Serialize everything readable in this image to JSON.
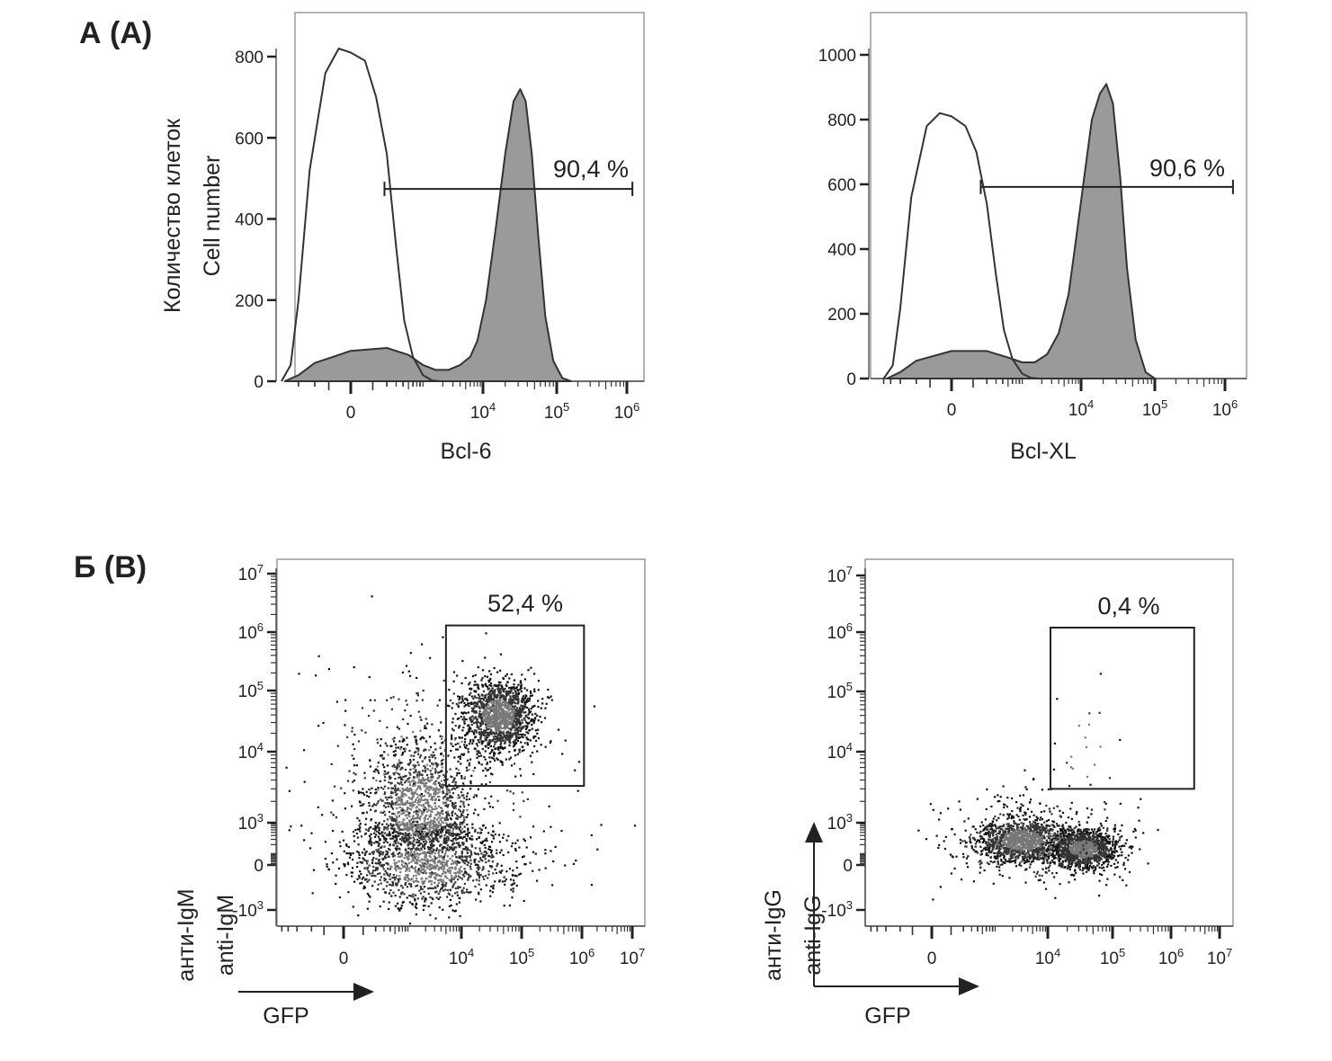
{
  "panels": {
    "a": "А (А)",
    "b": "Б (В)"
  },
  "chart_data": [
    {
      "id": "hist-bcl6",
      "type": "area",
      "xlabel": "Bcl-6",
      "ylabel": [
        "Количество клеток",
        "Cell number"
      ],
      "xscale": "biexponential",
      "xticks": [
        {
          "v": 0,
          "base": "0",
          "exp": ""
        },
        {
          "v": 10000,
          "base": "10",
          "exp": "4"
        },
        {
          "v": 100000,
          "base": "10",
          "exp": "5"
        },
        {
          "v": 1000000,
          "base": "10",
          "exp": "6"
        }
      ],
      "yticks": [
        0,
        200,
        400,
        600,
        800
      ],
      "ylim": [
        0,
        900
      ],
      "series": [
        {
          "role": "stained",
          "fill": "#9a9a9a",
          "points": [
            [
              -700,
              0
            ],
            [
              -400,
              15
            ],
            [
              -200,
              45
            ],
            [
              0,
              75
            ],
            [
              200,
              82
            ],
            [
              500,
              65
            ],
            [
              900,
              40
            ],
            [
              1500,
              28
            ],
            [
              2500,
              28
            ],
            [
              4000,
              40
            ],
            [
              6000,
              60
            ],
            [
              8000,
              100
            ],
            [
              11000,
              200
            ],
            [
              15000,
              380
            ],
            [
              20000,
              560
            ],
            [
              26000,
              690
            ],
            [
              32000,
              720
            ],
            [
              38000,
              690
            ],
            [
              46000,
              560
            ],
            [
              56000,
              360
            ],
            [
              70000,
              160
            ],
            [
              90000,
              50
            ],
            [
              120000,
              8
            ],
            [
              160000,
              0
            ]
          ]
        },
        {
          "role": "control",
          "fill": "none",
          "points": [
            [
              -800,
              0
            ],
            [
              -550,
              40
            ],
            [
              -400,
              200
            ],
            [
              -250,
              520
            ],
            [
              -120,
              760
            ],
            [
              -50,
              820
            ],
            [
              0,
              810
            ],
            [
              60,
              790
            ],
            [
              120,
              700
            ],
            [
              200,
              560
            ],
            [
              300,
              330
            ],
            [
              420,
              150
            ],
            [
              600,
              60
            ],
            [
              900,
              15
            ],
            [
              1300,
              2
            ],
            [
              1800,
              0
            ]
          ]
        }
      ],
      "gate": {
        "label": "90,4 %",
        "x": [
          180,
          1200000
        ],
        "level": 474
      }
    },
    {
      "id": "hist-bclxl",
      "type": "area",
      "xlabel": "Bcl-XL",
      "xscale": "biexponential",
      "xticks": [
        {
          "v": 0,
          "base": "0",
          "exp": ""
        },
        {
          "v": 10000,
          "base": "10",
          "exp": "4"
        },
        {
          "v": 100000,
          "base": "10",
          "exp": "5"
        },
        {
          "v": 1000000,
          "base": "10",
          "exp": "6"
        }
      ],
      "yticks": [
        0,
        200,
        400,
        600,
        800,
        1000
      ],
      "ylim": [
        0,
        1100
      ],
      "series": [
        {
          "role": "stained",
          "fill": "#9a9a9a",
          "points": [
            [
              -700,
              0
            ],
            [
              -400,
              20
            ],
            [
              -200,
              55
            ],
            [
              0,
              85
            ],
            [
              200,
              85
            ],
            [
              500,
              65
            ],
            [
              900,
              50
            ],
            [
              1500,
              50
            ],
            [
              2500,
              75
            ],
            [
              4000,
              140
            ],
            [
              6000,
              260
            ],
            [
              8000,
              420
            ],
            [
              11000,
              620
            ],
            [
              14000,
              800
            ],
            [
              18000,
              880
            ],
            [
              22000,
              910
            ],
            [
              27000,
              850
            ],
            [
              34000,
              620
            ],
            [
              42000,
              340
            ],
            [
              55000,
              120
            ],
            [
              75000,
              20
            ],
            [
              100000,
              0
            ]
          ]
        },
        {
          "role": "control",
          "fill": "none",
          "points": [
            [
              -800,
              0
            ],
            [
              -550,
              40
            ],
            [
              -400,
              220
            ],
            [
              -250,
              560
            ],
            [
              -120,
              780
            ],
            [
              -50,
              820
            ],
            [
              0,
              810
            ],
            [
              60,
              780
            ],
            [
              120,
              700
            ],
            [
              200,
              540
            ],
            [
              300,
              320
            ],
            [
              420,
              150
            ],
            [
              600,
              60
            ],
            [
              900,
              15
            ],
            [
              1300,
              2
            ],
            [
              1800,
              0
            ]
          ]
        }
      ],
      "gate": {
        "label": "90,6 %",
        "x": [
          150,
          1300000
        ],
        "level": 592
      }
    },
    {
      "id": "dot-igm",
      "type": "scatter",
      "xlabel": "GFP",
      "ylabel": [
        "анти-IgM",
        "anti-IgM"
      ],
      "xscale": "biexponential",
      "yscale": "biexponential",
      "xticks": [
        {
          "v": 0,
          "base": "0",
          "exp": ""
        },
        {
          "v": 10000,
          "base": "10",
          "exp": "4"
        },
        {
          "v": 100000,
          "base": "10",
          "exp": "5"
        },
        {
          "v": 1000000,
          "base": "10",
          "exp": "6"
        },
        {
          "v": 10000000,
          "base": "10",
          "exp": "7"
        }
      ],
      "yticks": [
        {
          "v": -1000,
          "base": "-10",
          "exp": "3"
        },
        {
          "v": 0,
          "base": "0",
          "exp": ""
        },
        {
          "v": 1000,
          "base": "10",
          "exp": "3"
        },
        {
          "v": 10000,
          "base": "10",
          "exp": "4"
        },
        {
          "v": 100000,
          "base": "10",
          "exp": "5"
        },
        {
          "v": 1000000,
          "base": "10",
          "exp": "6"
        },
        {
          "v": 10000000,
          "base": "10",
          "exp": "7"
        }
      ],
      "clusters": [
        {
          "center": [
            1500,
            1500
          ],
          "spread": [
            0.55,
            0.55
          ],
          "n": 1400
        },
        {
          "center": [
            40000,
            40000
          ],
          "spread": [
            0.3,
            0.3
          ],
          "n": 1500
        },
        {
          "center": [
            2000,
            0
          ],
          "spread": [
            0.8,
            0.6
          ],
          "n": 1100
        },
        {
          "center": [
            2000,
            3000
          ],
          "spread": [
            1.2,
            1.1
          ],
          "n": 350
        }
      ],
      "gate": {
        "label": "52,4 %",
        "x": [
          5000,
          1100000
        ],
        "y": [
          3300,
          1300000
        ]
      }
    },
    {
      "id": "dot-igg",
      "type": "scatter",
      "xlabel": "GFP",
      "ylabel": [
        "анти-IgG",
        "anti-IgG"
      ],
      "xscale": "biexponential",
      "yscale": "biexponential",
      "xticks": [
        {
          "v": 0,
          "base": "0",
          "exp": ""
        },
        {
          "v": 10000,
          "base": "10",
          "exp": "4"
        },
        {
          "v": 100000,
          "base": "10",
          "exp": "5"
        },
        {
          "v": 1000000,
          "base": "10",
          "exp": "6"
        },
        {
          "v": 10000000,
          "base": "10",
          "exp": "7"
        }
      ],
      "yticks": [
        {
          "v": -1000,
          "base": "-10",
          "exp": "3"
        },
        {
          "v": 0,
          "base": "0",
          "exp": ""
        },
        {
          "v": 1000,
          "base": "10",
          "exp": "3"
        },
        {
          "v": 10000,
          "base": "10",
          "exp": "4"
        },
        {
          "v": 100000,
          "base": "10",
          "exp": "5"
        },
        {
          "v": 1000000,
          "base": "10",
          "exp": "6"
        },
        {
          "v": 10000000,
          "base": "10",
          "exp": "7"
        }
      ],
      "clusters": [
        {
          "center": [
            3000,
            300
          ],
          "spread": [
            0.45,
            0.35
          ],
          "n": 1300
        },
        {
          "center": [
            35000,
            150
          ],
          "spread": [
            0.25,
            0.3
          ],
          "n": 1200
        },
        {
          "center": [
            5000,
            200
          ],
          "spread": [
            0.9,
            0.6
          ],
          "n": 300
        },
        {
          "center": [
            40000,
            8000
          ],
          "spread": [
            0.3,
            0.8
          ],
          "n": 25
        }
      ],
      "gate": {
        "label": "0,4 %",
        "x": [
          11000,
          3000000
        ],
        "y": [
          3000,
          1200000
        ]
      }
    }
  ]
}
